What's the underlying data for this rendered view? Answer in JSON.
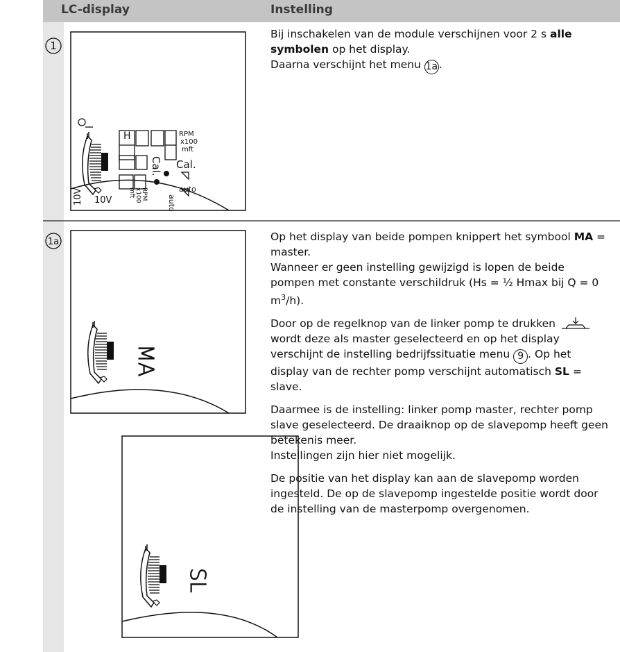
{
  "header": {
    "col1": "LC-display",
    "col2": "Instelling"
  },
  "rows": [
    {
      "marker": "1",
      "display": {
        "labels": [
          "H",
          "RPM",
          "x100",
          "mft",
          "Cal.",
          "Cal.",
          "auto",
          "auto",
          "10V",
          "10V",
          "RPM",
          "x100",
          "mft"
        ]
      },
      "paragraphs": [
        [
          [
            {
              "text": "Bij inschakelen van de module verschijnen voor 2 s "
            },
            {
              "text": "alle symbolen",
              "bold": true
            },
            {
              "text": " op het display."
            }
          ],
          [
            {
              "text": "Daarna verschijnt het menu "
            },
            {
              "ref": "1a"
            },
            {
              "text": "."
            }
          ]
        ]
      ]
    },
    {
      "marker": "1a",
      "displays": [
        {
          "labels": [
            "MA"
          ]
        },
        {
          "labels": [
            "SL"
          ]
        }
      ],
      "paragraphs": [
        [
          [
            {
              "text": "Op het display van beide pompen knippert het symbool "
            },
            {
              "text": "MA",
              "bold": true
            },
            {
              "text": " = master."
            }
          ],
          [
            {
              "text": "Wanneer er geen instelling gewijzigd is lopen de beide pompen met constante verschildruk (Hs = ½ Hmax bij Q = 0 m"
            },
            {
              "text": "3",
              "sup": true
            },
            {
              "text": "/h)."
            }
          ]
        ],
        [
          [
            {
              "text": "Door op de regelknop van de linker pomp te drukken "
            },
            {
              "icon": "press"
            },
            {
              "text": " wordt deze als master geselecteerd en op het display verschijnt de instelling bedrijfssituatie menu "
            },
            {
              "ref": "9"
            },
            {
              "text": ". Op het display van de rechter pomp verschijnt automatisch "
            },
            {
              "text": "SL",
              "bold": true
            },
            {
              "text": " = slave."
            }
          ]
        ],
        [
          [
            {
              "text": "Daarmee is de instelling: linker pomp master, rechter pomp slave geselecteerd. De draaiknop op de slavepomp heeft geen betekenis meer."
            }
          ],
          [
            {
              "text": "Instellingen zijn hier niet mogelijk."
            }
          ]
        ],
        [
          [
            {
              "text": "De positie van het display kan aan de slavepomp worden ingesteld. De op de slavepomp ingestelde positie wordt door de instelling van de masterpomp overgenomen."
            }
          ]
        ]
      ]
    }
  ]
}
